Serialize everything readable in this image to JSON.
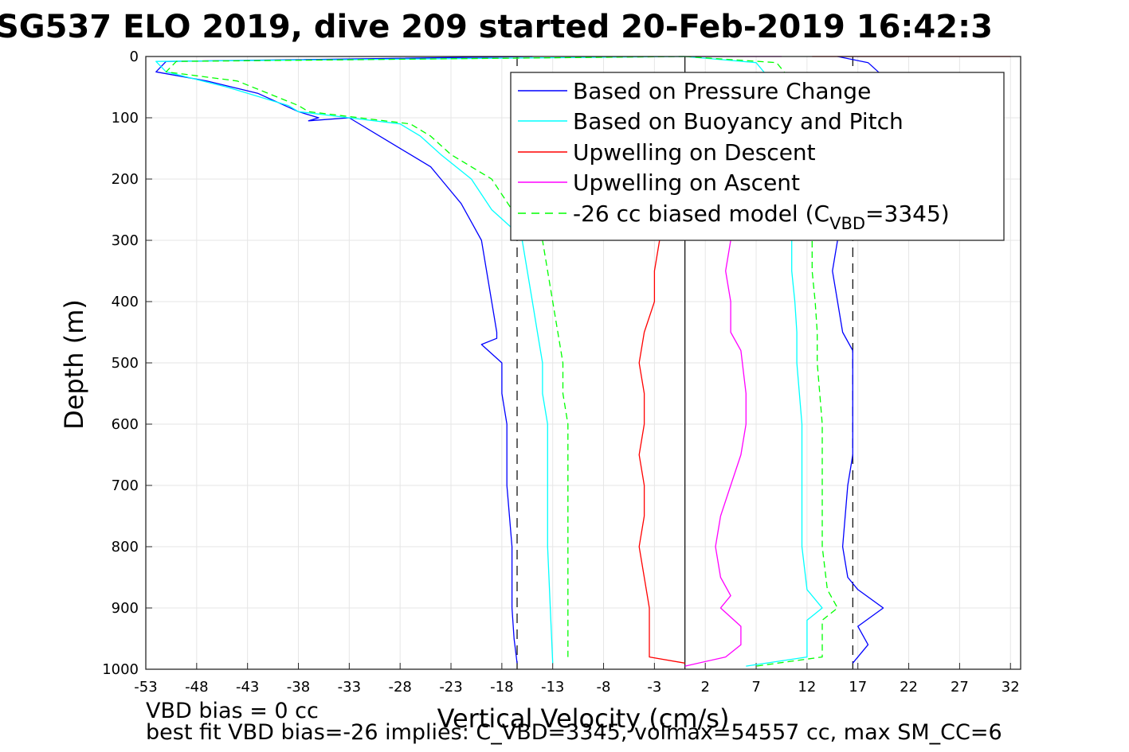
{
  "chart_data": {
    "type": "line",
    "title": "SG537 ELO 2019, dive 209 started 20-Feb-2019 16:42:3",
    "xlabel": "Vertical Velocity (cm/s)",
    "ylabel": "Depth (m)",
    "xlim": [
      -53,
      33
    ],
    "ylim": [
      0,
      1000
    ],
    "y_reversed": true,
    "xticks": [
      "-53",
      "-48",
      "-43",
      "-38",
      "-33",
      "-28",
      "-23",
      "-18",
      "-13",
      "-8",
      "-3",
      "2",
      "7",
      "12",
      "17",
      "22",
      "27",
      "32"
    ],
    "yticks": [
      "0",
      "100",
      "200",
      "300",
      "400",
      "500",
      "600",
      "700",
      "800",
      "900",
      "1000"
    ],
    "grid": true,
    "legend_position": "top-right",
    "reference_lines": [
      {
        "x": 0,
        "style": "solid"
      },
      {
        "x": -16.5,
        "style": "dashed"
      },
      {
        "x": 16.5,
        "style": "dashed"
      }
    ],
    "series": [
      {
        "name": "Based on Pressure Change",
        "color": "#0000ff",
        "dash": "solid",
        "segments": [
          {
            "x": [
              -15,
              -51,
              -52,
              -47,
              -42,
              -40,
              -38,
              -36,
              -37,
              -33,
              -29,
              -27,
              -25,
              -24,
              -22,
              -21,
              -20,
              -19.5,
              -19,
              -18.5,
              -18.5,
              -20,
              -18,
              -18,
              -17.5,
              -17.5,
              -17,
              -17,
              -17,
              -16.8,
              -16.5
            ],
            "y": [
              0,
              8,
              25,
              40,
              60,
              75,
              90,
              100,
              105,
              100,
              140,
              160,
              180,
              200,
              240,
              270,
              300,
              350,
              400,
              450,
              460,
              470,
              500,
              550,
              600,
              700,
              800,
              850,
              900,
              950,
              990
            ]
          },
          {
            "x": [
              15,
              18,
              20,
              19,
              17,
              15,
              14.5,
              15,
              15.5,
              16.5,
              16.5,
              16.5,
              16,
              15.5,
              16,
              17,
              19.5,
              17,
              18,
              16.5
            ],
            "y": [
              0,
              10,
              40,
              80,
              200,
              300,
              350,
              400,
              450,
              480,
              550,
              650,
              700,
              800,
              850,
              870,
              900,
              930,
              960,
              990
            ]
          }
        ]
      },
      {
        "name": "Based on Buoyancy and Pitch",
        "color": "#00ffff",
        "dash": "solid",
        "segments": [
          {
            "x": [
              0,
              -52,
              -51,
              -45,
              -39,
              -38,
              -33,
              -28,
              -26,
              -24,
              -21,
              -19,
              -17,
              -16,
              -15.5,
              -15,
              -14.5,
              -14,
              -14,
              -13.5,
              -13.5,
              -13.5,
              -13
            ],
            "y": [
              0,
              8,
              25,
              50,
              80,
              90,
              100,
              110,
              130,
              160,
              200,
              250,
              280,
              300,
              350,
              400,
              450,
              500,
              550,
              600,
              700,
              800,
              990
            ]
          },
          {
            "x": [
              0,
              7,
              9,
              10,
              10.5,
              10.5,
              10.8,
              11,
              11,
              11.5,
              11.5,
              11.5,
              12,
              13.5,
              12,
              12,
              12,
              6
            ],
            "y": [
              0,
              10,
              50,
              150,
              300,
              350,
              400,
              450,
              500,
              600,
              700,
              800,
              870,
              900,
              920,
              950,
              980,
              995
            ]
          }
        ]
      },
      {
        "name": "Upwelling on Descent",
        "color": "#ff0000",
        "dash": "solid",
        "segments": [
          {
            "x": [
              32,
              27,
              21,
              17,
              14,
              12.5
            ],
            "y": [
              0,
              0,
              0,
              0,
              0,
              0
            ]
          },
          {
            "x": [
              -2.5,
              -3,
              -3,
              -4,
              -4.5,
              -4,
              -4,
              -4.5,
              -4,
              -4,
              -4.5,
              -4,
              -3.5,
              -3.5,
              0
            ],
            "y": [
              300,
              350,
              400,
              450,
              500,
              550,
              600,
              650,
              700,
              750,
              800,
              850,
              900,
              980,
              990
            ]
          }
        ]
      },
      {
        "name": "Upwelling on Ascent",
        "color": "#ff00ff",
        "dash": "solid",
        "segments": [
          {
            "x": [
              1,
              4,
              7,
              9.5
            ],
            "y": [
              0,
              0,
              0,
              0
            ]
          },
          {
            "x": [
              4.5,
              4,
              4.5,
              4.5,
              5.5,
              6,
              6,
              5.5,
              4.5,
              3.5,
              3,
              3.5,
              4.5,
              3.5,
              5.5,
              5.5,
              4,
              0
            ],
            "y": [
              300,
              350,
              400,
              450,
              480,
              550,
              600,
              650,
              700,
              750,
              800,
              850,
              880,
              900,
              930,
              960,
              980,
              995
            ]
          }
        ]
      },
      {
        "name": "-26 cc biased model (C_VBD=3345)",
        "color": "#00ff00",
        "dash": "dashed",
        "segments": [
          {
            "x": [
              0,
              -50,
              -51,
              -44,
              -38,
              -37,
              -32,
              -27,
              -25,
              -23,
              -19,
              -17,
              -15.5,
              -14,
              -13.5,
              -13,
              -12.5,
              -12,
              -12,
              -11.5,
              -11.5,
              -11.5
            ],
            "y": [
              0,
              8,
              25,
              40,
              80,
              90,
              100,
              110,
              130,
              160,
              200,
              250,
              280,
              300,
              350,
              400,
              450,
              500,
              550,
              600,
              700,
              980
            ]
          },
          {
            "x": [
              0,
              9,
              11,
              12.5,
              12.5,
              12.5,
              12.8,
              13,
              13,
              13.5,
              13.5,
              13.5,
              14,
              15,
              13.5,
              13.5,
              13.5,
              7
            ],
            "y": [
              0,
              10,
              50,
              150,
              300,
              350,
              400,
              450,
              500,
              600,
              700,
              800,
              870,
              900,
              920,
              950,
              980,
              995
            ]
          }
        ]
      }
    ],
    "legend_label_parts": {
      "prefix": "-26 cc biased model (C",
      "sub": "VBD",
      "suffix": "=3345)"
    }
  },
  "footer": {
    "line1": "VBD bias = 0 cc",
    "line2": "best fit VBD bias=-26 implies: C_VBD=3345, volmax=54557 cc, max SM_CC=6"
  }
}
